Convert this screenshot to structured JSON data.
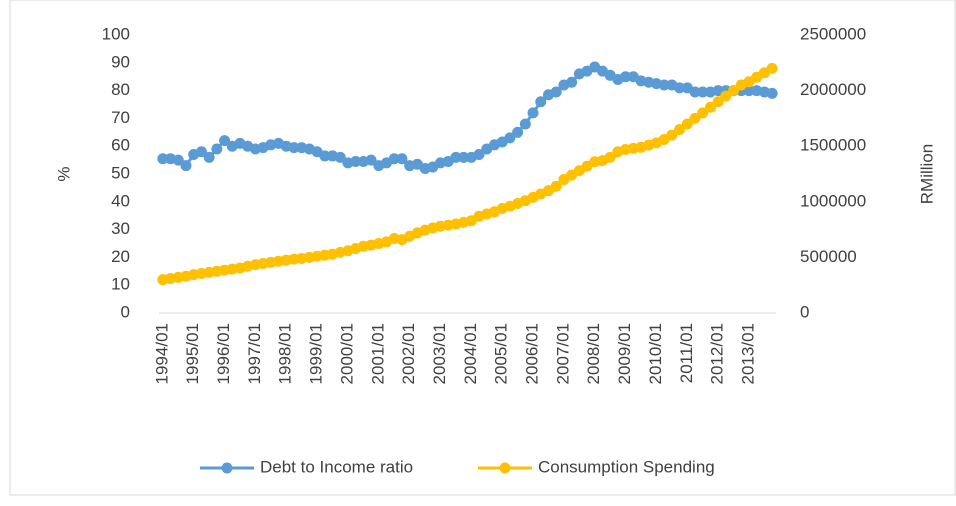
{
  "chart_data": {
    "type": "line",
    "categories": [
      "1994/01",
      null,
      null,
      null,
      "1995/01",
      null,
      null,
      null,
      "1996/01",
      null,
      null,
      null,
      "1997/01",
      null,
      null,
      null,
      "1998/01",
      null,
      null,
      null,
      "1999/01",
      null,
      null,
      null,
      "2000/01",
      null,
      null,
      null,
      "2001/01",
      null,
      null,
      null,
      "2002/01",
      null,
      null,
      null,
      "2003/01",
      null,
      null,
      null,
      "2004/01",
      null,
      null,
      null,
      "2005/01",
      null,
      null,
      null,
      "2006/01",
      null,
      null,
      null,
      "2007/01",
      null,
      null,
      null,
      "2008/01",
      null,
      null,
      null,
      "2009/01",
      null,
      null,
      null,
      "2010/01",
      null,
      null,
      null,
      "2011/01",
      null,
      null,
      null,
      "2012/01",
      null,
      null,
      null,
      "2013/01",
      null,
      null,
      null
    ],
    "series": [
      {
        "name": "Debt to Income ratio",
        "color": "#5b9bd5",
        "axis": "y",
        "values": [
          55.5,
          55.5,
          55,
          53,
          57,
          58,
          56,
          59,
          62,
          60,
          61,
          60,
          59,
          59.5,
          60.5,
          61,
          60,
          59.5,
          59.5,
          59,
          58,
          56.5,
          56.5,
          56,
          54,
          54.5,
          54.5,
          55,
          53,
          54,
          55.5,
          55.5,
          53,
          53.5,
          52,
          52.5,
          54,
          54.5,
          56,
          56,
          56,
          57,
          59,
          60.5,
          61.5,
          63,
          65,
          68,
          72,
          76,
          78.5,
          79.5,
          82,
          83,
          86,
          87,
          88.5,
          87,
          85.5,
          84,
          85,
          85,
          83.5,
          83,
          82.5,
          82,
          82,
          81,
          81,
          79.5,
          79.5,
          79.5,
          80,
          80,
          80,
          80,
          80,
          80,
          79.5,
          79
        ]
      },
      {
        "name": "Consumption Spending",
        "color": "#ffc000",
        "axis": "y2",
        "values": [
          300000,
          310000,
          320000,
          330000,
          345000,
          355000,
          365000,
          375000,
          385000,
          395000,
          405000,
          420000,
          435000,
          445000,
          455000,
          465000,
          475000,
          485000,
          490000,
          500000,
          510000,
          520000,
          530000,
          545000,
          560000,
          580000,
          600000,
          610000,
          625000,
          640000,
          670000,
          660000,
          690000,
          720000,
          745000,
          765000,
          780000,
          790000,
          800000,
          815000,
          830000,
          870000,
          890000,
          910000,
          940000,
          960000,
          985000,
          1010000,
          1040000,
          1070000,
          1100000,
          1140000,
          1200000,
          1240000,
          1280000,
          1320000,
          1360000,
          1370000,
          1400000,
          1450000,
          1470000,
          1480000,
          1490000,
          1510000,
          1530000,
          1560000,
          1600000,
          1650000,
          1700000,
          1750000,
          1800000,
          1850000,
          1900000,
          1950000,
          2000000,
          2050000,
          2080000,
          2120000,
          2160000,
          2200000
        ]
      }
    ],
    "ylabel": "%",
    "y2label": "RMillion",
    "ylim": [
      0,
      100
    ],
    "yticks": [
      0,
      10,
      20,
      30,
      40,
      50,
      60,
      70,
      80,
      90,
      100
    ],
    "y2lim": [
      0,
      2500000
    ],
    "y2ticks": [
      0,
      500000,
      1000000,
      1500000,
      2000000,
      2500000
    ],
    "grid": false,
    "legend": "bottom"
  }
}
